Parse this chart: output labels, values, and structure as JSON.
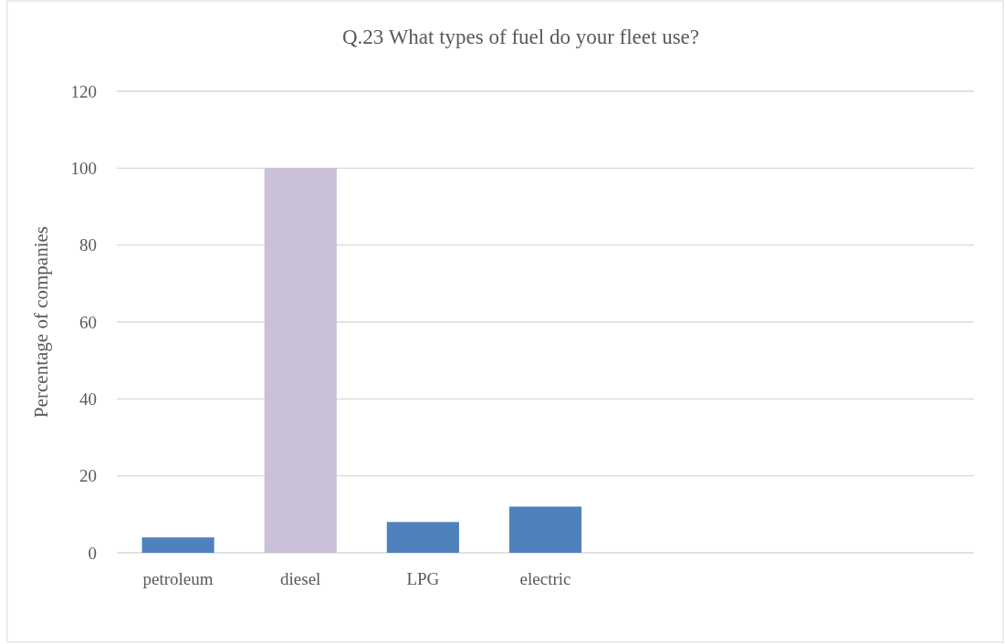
{
  "chart_data": {
    "type": "bar",
    "title": "Q.23 What types of fuel do your fleet use?",
    "ylabel": "Percentage of companies",
    "categories": [
      "petroleum",
      "diesel",
      "LPG",
      "electric",
      null,
      null,
      null
    ],
    "values": [
      4,
      100,
      8,
      12,
      null,
      null,
      null
    ],
    "colors": [
      "#4f81bd",
      "#cbc0da",
      "#4f81bd",
      "#4f81bd",
      "#4f81bd",
      "#4f81bd",
      "#4f81bd"
    ],
    "ylim": [
      0,
      120
    ],
    "yticks": [
      0,
      20,
      40,
      60,
      80,
      100,
      120
    ],
    "grid": "y"
  }
}
